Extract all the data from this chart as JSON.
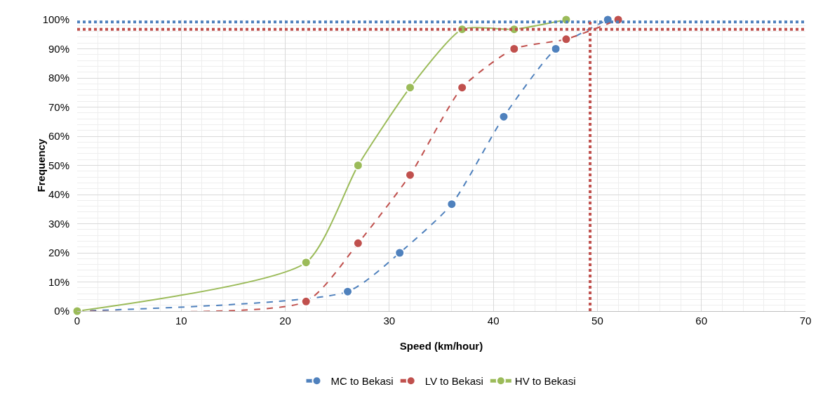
{
  "chart_data": {
    "type": "line",
    "xlabel": "Speed (km/hour)",
    "ylabel": "Frequency",
    "xlim": [
      0,
      70
    ],
    "xticks": [
      0,
      10,
      20,
      30,
      40,
      50,
      60,
      70
    ],
    "ylim": [
      0,
      100
    ],
    "yticks": [
      {
        "value": 0,
        "label": "0%"
      },
      {
        "value": 10,
        "label": "10%"
      },
      {
        "value": 20,
        "label": "20%"
      },
      {
        "value": 30,
        "label": "30%"
      },
      {
        "value": 40,
        "label": "40%"
      },
      {
        "value": 50,
        "label": "50%"
      },
      {
        "value": 60,
        "label": "60%"
      },
      {
        "value": 70,
        "label": "70%"
      },
      {
        "value": 80,
        "label": "80%"
      },
      {
        "value": 90,
        "label": "90%"
      },
      {
        "value": 100,
        "label": "100%"
      }
    ],
    "grid": true,
    "legend": "bottom",
    "marker": "circle",
    "series": [
      {
        "name": "MC to Bekasi",
        "color": "#4f81bd",
        "line_style": "dashed",
        "x": [
          0,
          26,
          31,
          36,
          41,
          46,
          51
        ],
        "values": [
          0,
          6.7,
          20,
          36.7,
          66.7,
          90,
          100
        ]
      },
      {
        "name": "LV to Bekasi",
        "color": "#c0504d",
        "line_style": "dashed",
        "x": [
          0,
          22,
          27,
          32,
          37,
          42,
          47,
          52
        ],
        "values": [
          0,
          3.3,
          23.3,
          46.7,
          76.7,
          90,
          93.3,
          100
        ]
      },
      {
        "name": "HV to Bekasi",
        "color": "#9bbb59",
        "line_style": "solid",
        "x": [
          0,
          22,
          27,
          32,
          37,
          42,
          47
        ],
        "values": [
          0,
          16.7,
          50,
          76.7,
          96.7,
          96.7,
          100
        ]
      }
    ],
    "ref_lines": [
      {
        "axis": "y",
        "value": 99.2,
        "color": "#4f81bd",
        "line_style": "dotted"
      },
      {
        "axis": "y",
        "value": 96.7,
        "color": "#c0504d",
        "line_style": "dotted"
      },
      {
        "axis": "x",
        "value": 49.3,
        "color": "#c0504d",
        "line_style": "dotted"
      }
    ]
  }
}
